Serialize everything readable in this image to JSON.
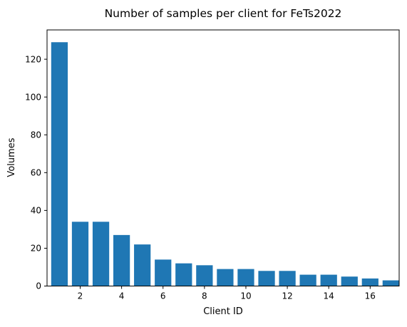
{
  "chart_data": {
    "type": "bar",
    "title": "Number of samples per client for FeTs2022",
    "xlabel": "Client ID",
    "ylabel": "Volumes",
    "x": [
      1,
      2,
      3,
      4,
      5,
      6,
      7,
      8,
      9,
      10,
      11,
      12,
      13,
      14,
      15,
      16,
      17
    ],
    "values": [
      129,
      34,
      34,
      27,
      22,
      14,
      12,
      11,
      9,
      9,
      8,
      8,
      6,
      6,
      5,
      4,
      3
    ],
    "x_ticks": [
      2,
      4,
      6,
      8,
      10,
      12,
      14,
      16
    ],
    "y_ticks": [
      0,
      20,
      40,
      60,
      80,
      100,
      120
    ],
    "xlim": [
      0.4,
      17.4
    ],
    "ylim": [
      0,
      135.5
    ],
    "bar_color": "#1f77b4",
    "grid": false,
    "legend": "none"
  }
}
